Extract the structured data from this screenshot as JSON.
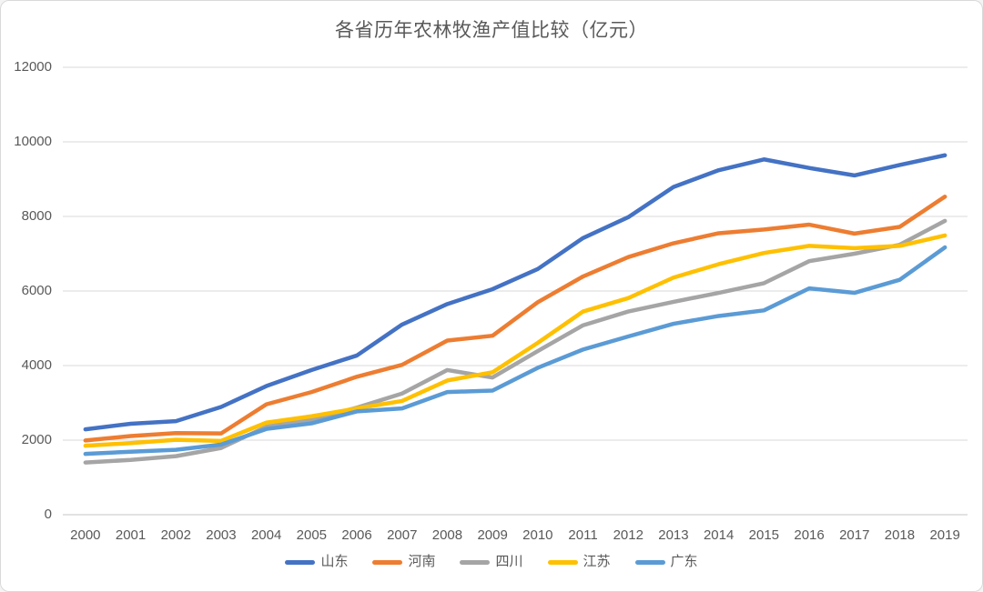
{
  "chart_data": {
    "type": "line",
    "title": "各省历年农林牧渔产值比较（亿元）",
    "categories": [
      "2000",
      "2001",
      "2002",
      "2003",
      "2004",
      "2005",
      "2006",
      "2007",
      "2008",
      "2009",
      "2010",
      "2011",
      "2012",
      "2013",
      "2014",
      "2015",
      "2016",
      "2017",
      "2018",
      "2019"
    ],
    "series": [
      {
        "name": "山东",
        "color": "#4472C4",
        "values": [
          2290,
          2440,
          2510,
          2890,
          3450,
          3880,
          4270,
          5100,
          5650,
          6050,
          6590,
          7420,
          7980,
          8790,
          9240,
          9530,
          9300,
          9100,
          9380,
          9640
        ]
      },
      {
        "name": "河南",
        "color": "#ED7D31",
        "values": [
          1990,
          2110,
          2190,
          2180,
          2960,
          3290,
          3700,
          4020,
          4670,
          4800,
          5700,
          6390,
          6910,
          7280,
          7550,
          7650,
          7780,
          7540,
          7720,
          8530
        ]
      },
      {
        "name": "四川",
        "color": "#A5A5A5",
        "values": [
          1400,
          1470,
          1570,
          1790,
          2360,
          2550,
          2870,
          3250,
          3880,
          3680,
          4390,
          5080,
          5450,
          5710,
          5950,
          6210,
          6800,
          7000,
          7240,
          7880
        ]
      },
      {
        "name": "江苏",
        "color": "#FFC000",
        "values": [
          1850,
          1920,
          2010,
          1980,
          2470,
          2640,
          2850,
          3050,
          3600,
          3820,
          4610,
          5450,
          5810,
          6360,
          6720,
          7020,
          7210,
          7150,
          7210,
          7490
        ]
      },
      {
        "name": "广东",
        "color": "#5B9BD5",
        "values": [
          1630,
          1690,
          1740,
          1880,
          2300,
          2450,
          2770,
          2850,
          3290,
          3330,
          3940,
          4430,
          4780,
          5120,
          5330,
          5480,
          6070,
          5950,
          6300,
          7170
        ]
      }
    ],
    "ylim": [
      0,
      12000
    ],
    "yticks": [
      0,
      2000,
      4000,
      6000,
      8000,
      10000,
      12000
    ],
    "grid": true,
    "legend_position": "bottom",
    "colors": {
      "axis_text": "#595959",
      "title_text": "#595959",
      "gridline": "#D9D9D9",
      "axis_line": "#C6C6C6",
      "background": "#FFFFFF",
      "border": "#D9D9D9"
    }
  }
}
